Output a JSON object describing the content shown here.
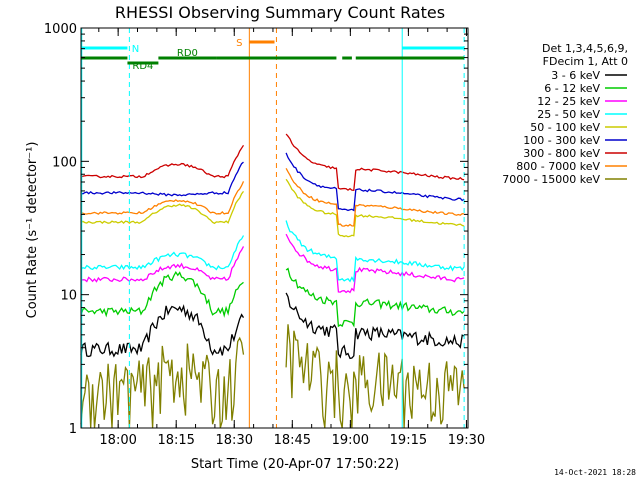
{
  "chart_data": {
    "type": "line",
    "title": "RHESSI Observing Summary Count Rates",
    "xlabel": "Start Time (20-Apr-07 17:50:22)",
    "ylabel": "Count Rate (s⁻¹ detector⁻¹)",
    "yscale": "log",
    "ylim": [
      1,
      1000
    ],
    "xlim_minutes": [
      0,
      100
    ],
    "y_ticks": [
      {
        "v": 1,
        "label": "1"
      },
      {
        "v": 10,
        "label": "10"
      },
      {
        "v": 100,
        "label": "100"
      },
      {
        "v": 1000,
        "label": "1000"
      }
    ],
    "x_ticks": [
      {
        "t": 9.6,
        "label": "18:00"
      },
      {
        "t": 24.6,
        "label": "18:15"
      },
      {
        "t": 39.6,
        "label": "18:30"
      },
      {
        "t": 54.6,
        "label": "18:45"
      },
      {
        "t": 69.6,
        "label": "19:00"
      },
      {
        "t": 84.6,
        "label": "19:15"
      },
      {
        "t": 99.6,
        "label": "19:30"
      }
    ],
    "legend_header": [
      "Det 1,3,4,5,6,9,",
      "FDecim 1, Att 0"
    ],
    "series": [
      {
        "name": "3 - 6 keV",
        "color": "#000000",
        "pre": 3.9,
        "bump": 4.0,
        "post": 4.8,
        "noise": 0.12
      },
      {
        "name": "6 - 12 keV",
        "color": "#00cc00",
        "pre": 7.5,
        "bump": 6.5,
        "post": 8.0,
        "noise": 0.07
      },
      {
        "name": "12 - 25 keV",
        "color": "#ff00ff",
        "pre": 13,
        "bump": 3.5,
        "post": 14,
        "noise": 0.04
      },
      {
        "name": "25 - 50 keV",
        "color": "#00ffff",
        "pre": 16,
        "bump": 4.0,
        "post": 17,
        "noise": 0.04
      },
      {
        "name": "50 - 100 keV",
        "color": "#cccc00",
        "pre": 35,
        "bump": 12,
        "post": 36,
        "noise": 0.02
      },
      {
        "name": "100 - 300 keV",
        "color": "#0000cc",
        "pre": 58,
        "bump": -2,
        "post": 56,
        "noise": 0.02
      },
      {
        "name": "300 - 800 keV",
        "color": "#cc0000",
        "pre": 77,
        "bump": 18,
        "post": 80,
        "noise": 0.02
      },
      {
        "name": "800 - 7000 keV",
        "color": "#ff8000",
        "pre": 41,
        "bump": 10,
        "post": 43,
        "noise": 0.02
      },
      {
        "name": "7000 - 15000 keV",
        "color": "#808000",
        "pre": 2.0,
        "bump": 0.8,
        "post": 2.2,
        "noise": 0.6
      }
    ],
    "flags": [
      {
        "label": "N",
        "color": "#00ffff",
        "segments": [
          [
            0,
            12
          ],
          [
            83,
            99
          ]
        ]
      },
      {
        "label": "RD0",
        "color": "#008000",
        "segments": [
          [
            20,
            35
          ]
        ]
      },
      {
        "label": "RD4",
        "color": "#008000",
        "segments": [
          [
            12,
            20
          ]
        ]
      },
      {
        "label": "",
        "color": "#008000",
        "segments": [
          [
            0,
            12
          ],
          [
            35,
            66
          ],
          [
            67.5,
            70
          ],
          [
            71,
            99
          ]
        ]
      },
      {
        "label": "S",
        "color": "#ff8000",
        "segments": [
          [
            43.5,
            50
          ]
        ]
      }
    ],
    "markers": {
      "cyan_dashed": [
        12.5,
        99
      ],
      "cyan_solid": [
        0.2,
        83
      ],
      "orange_solid": [
        43.5
      ],
      "orange_dashed": [
        50.5
      ]
    },
    "timestamp": "14-Oct-2021 18:28"
  }
}
